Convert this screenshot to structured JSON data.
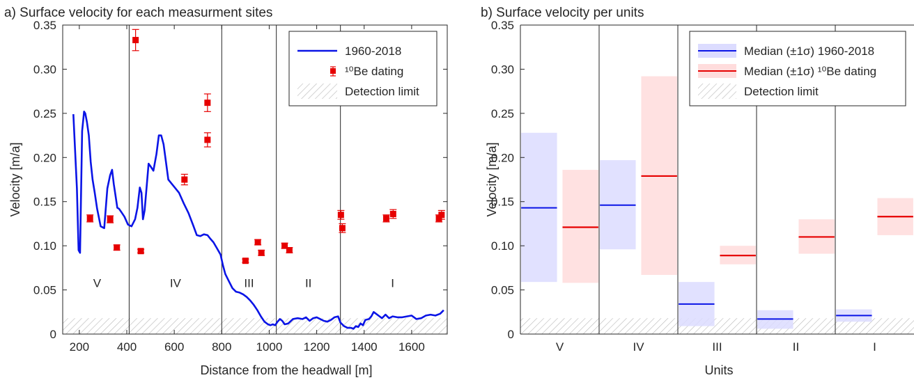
{
  "chart_data": [
    {
      "panel": "a",
      "type": "line",
      "title": "a) Surface velocity for each measurment sites",
      "xlabel": "Distance from the headwall [m]",
      "ylabel": "Velocity [m/a]",
      "xlim": [
        130,
        1750
      ],
      "ylim": [
        0,
        0.35
      ],
      "xticks": [
        200,
        400,
        600,
        800,
        1000,
        1200,
        1400,
        1600
      ],
      "yticks": [
        0,
        0.05,
        0.1,
        0.15,
        0.2,
        0.25,
        0.3,
        0.35
      ],
      "unit_boundaries": [
        410,
        800,
        1030,
        1300
      ],
      "unit_labels": [
        {
          "label": "V",
          "x": 275,
          "y": 0.058
        },
        {
          "label": "IV",
          "x": 605,
          "y": 0.058
        },
        {
          "label": "III",
          "x": 915,
          "y": 0.058
        },
        {
          "label": "II",
          "x": 1165,
          "y": 0.058
        },
        {
          "label": "I",
          "x": 1520,
          "y": 0.058
        }
      ],
      "detection_limit": 0.018,
      "legend": {
        "position": "top-right",
        "entries": [
          "1960-2018",
          "¹⁰Be dating",
          "Detection limit"
        ]
      },
      "series": [
        {
          "name": "1960-2018",
          "type": "line",
          "color": "#0a14e6",
          "x": [
            175,
            190,
            197,
            203,
            212,
            220,
            225,
            232,
            240,
            248,
            256,
            265,
            275,
            290,
            305,
            318,
            330,
            338,
            345,
            352,
            360,
            367,
            375,
            390,
            405,
            420,
            435,
            445,
            455,
            462,
            468,
            475,
            483,
            492,
            500,
            512,
            525,
            535,
            545,
            555,
            565,
            575,
            590,
            605,
            620,
            640,
            660,
            680,
            695,
            710,
            725,
            740,
            752,
            765,
            780,
            795,
            805,
            815,
            830,
            845,
            860,
            875,
            890,
            905,
            920,
            935,
            950,
            965,
            980,
            995,
            1005,
            1015,
            1025,
            1035,
            1045,
            1055,
            1065,
            1080,
            1100,
            1120,
            1140,
            1155,
            1170,
            1185,
            1200,
            1215,
            1230,
            1245,
            1260,
            1275,
            1290,
            1300,
            1315,
            1330,
            1345,
            1355,
            1365,
            1375,
            1385,
            1395,
            1405,
            1420,
            1430,
            1440,
            1450,
            1460,
            1475,
            1490,
            1505,
            1520,
            1540,
            1560,
            1580,
            1600,
            1620,
            1640,
            1660,
            1680,
            1700,
            1720,
            1735
          ],
          "y": [
            0.249,
            0.165,
            0.095,
            0.092,
            0.23,
            0.252,
            0.25,
            0.24,
            0.225,
            0.195,
            0.175,
            0.16,
            0.142,
            0.122,
            0.12,
            0.165,
            0.18,
            0.186,
            0.17,
            0.158,
            0.143,
            0.142,
            0.139,
            0.133,
            0.124,
            0.122,
            0.13,
            0.143,
            0.166,
            0.16,
            0.13,
            0.14,
            0.165,
            0.193,
            0.19,
            0.185,
            0.204,
            0.225,
            0.225,
            0.215,
            0.195,
            0.175,
            0.17,
            0.165,
            0.16,
            0.148,
            0.137,
            0.123,
            0.112,
            0.111,
            0.113,
            0.112,
            0.108,
            0.104,
            0.097,
            0.09,
            0.078,
            0.068,
            0.06,
            0.052,
            0.048,
            0.047,
            0.045,
            0.042,
            0.038,
            0.033,
            0.027,
            0.02,
            0.014,
            0.011,
            0.01,
            0.011,
            0.01,
            0.014,
            0.017,
            0.015,
            0.011,
            0.012,
            0.017,
            0.018,
            0.017,
            0.019,
            0.015,
            0.018,
            0.019,
            0.017,
            0.015,
            0.014,
            0.016,
            0.019,
            0.02,
            0.013,
            0.009,
            0.007,
            0.007,
            0.006,
            0.009,
            0.008,
            0.012,
            0.01,
            0.016,
            0.017,
            0.02,
            0.025,
            0.023,
            0.021,
            0.018,
            0.022,
            0.018,
            0.02,
            0.019,
            0.019,
            0.02,
            0.021,
            0.017,
            0.018,
            0.021,
            0.022,
            0.021,
            0.023,
            0.027
          ]
        },
        {
          "name": "¹⁰Be dating",
          "type": "scatter",
          "color": "#e60000",
          "points": [
            {
              "x": 245,
              "y": 0.131,
              "err": 0.004
            },
            {
              "x": 330,
              "y": 0.13,
              "err": 0.004
            },
            {
              "x": 358,
              "y": 0.098,
              "err": 0.003
            },
            {
              "x": 437,
              "y": 0.333,
              "err": 0.012
            },
            {
              "x": 459,
              "y": 0.094,
              "err": 0.002
            },
            {
              "x": 643,
              "y": 0.175,
              "err": 0.006
            },
            {
              "x": 740,
              "y": 0.262,
              "err": 0.01
            },
            {
              "x": 740,
              "y": 0.22,
              "err": 0.008
            },
            {
              "x": 900,
              "y": 0.083,
              "err": 0.002
            },
            {
              "x": 952,
              "y": 0.104,
              "err": 0.003
            },
            {
              "x": 967,
              "y": 0.092,
              "err": 0.003
            },
            {
              "x": 1065,
              "y": 0.1,
              "err": 0.003
            },
            {
              "x": 1085,
              "y": 0.095,
              "err": 0.003
            },
            {
              "x": 1302,
              "y": 0.135,
              "err": 0.005
            },
            {
              "x": 1308,
              "y": 0.12,
              "err": 0.005
            },
            {
              "x": 1493,
              "y": 0.131,
              "err": 0.004
            },
            {
              "x": 1522,
              "y": 0.136,
              "err": 0.005
            },
            {
              "x": 1715,
              "y": 0.131,
              "err": 0.004
            },
            {
              "x": 1726,
              "y": 0.135,
              "err": 0.005
            }
          ]
        }
      ]
    },
    {
      "panel": "b",
      "type": "bar",
      "title": "b) Surface velocity per units",
      "xlabel": "Units",
      "ylabel": "Velocity [m/a]",
      "ylim": [
        0,
        0.35
      ],
      "yticks": [
        0,
        0.05,
        0.1,
        0.15,
        0.2,
        0.25,
        0.3,
        0.35
      ],
      "categories": [
        "V",
        "IV",
        "III",
        "II",
        "I"
      ],
      "detection_limit": 0.018,
      "legend": {
        "position": "top-right",
        "entries": [
          "Median (±1σ) 1960-2018",
          "Median (±1σ) ¹⁰Be dating",
          "Detection limit"
        ]
      },
      "series": [
        {
          "name": "Median (±1σ) 1960-2018",
          "color": "#0a14e6",
          "fill": "#dcdcff",
          "median": [
            0.143,
            0.146,
            0.034,
            0.017,
            0.021
          ],
          "lower": [
            0.059,
            0.096,
            0.009,
            0.006,
            0.014
          ],
          "upper": [
            0.228,
            0.197,
            0.059,
            0.027,
            0.028
          ]
        },
        {
          "name": "Median (±1σ) ¹⁰Be dating",
          "color": "#e60000",
          "fill": "#ffdcdc",
          "median": [
            0.121,
            0.179,
            0.089,
            0.11,
            0.133
          ],
          "lower": [
            0.058,
            0.067,
            0.079,
            0.091,
            0.112
          ],
          "upper": [
            0.186,
            0.292,
            0.1,
            0.13,
            0.154
          ]
        }
      ]
    }
  ]
}
